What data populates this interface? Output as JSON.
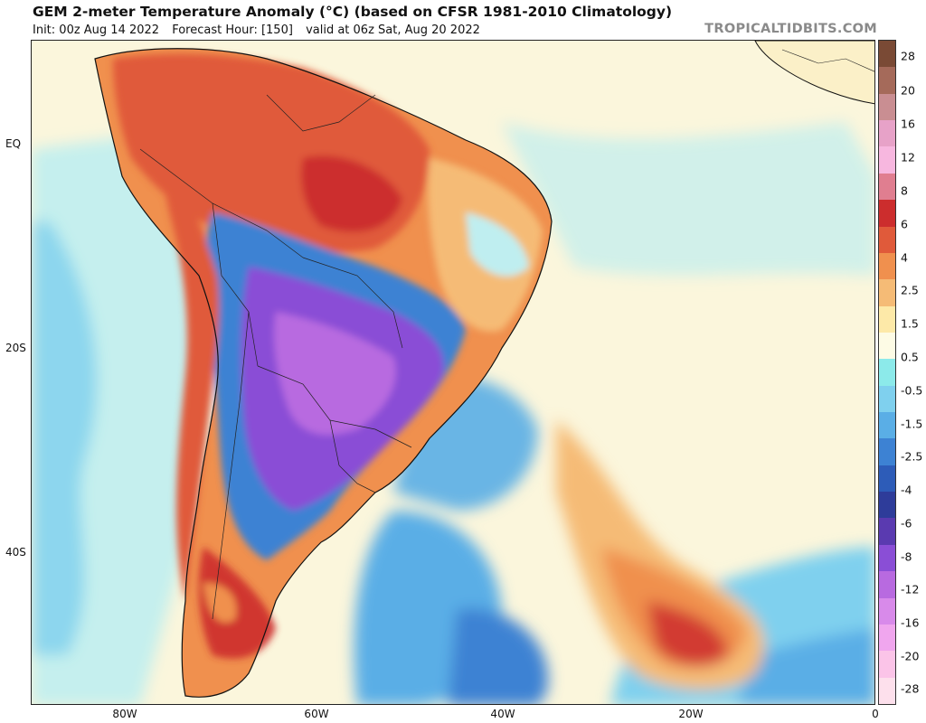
{
  "header": {
    "title": "GEM 2-meter Temperature Anomaly (°C) (based on CFSR 1981-2010 Climatology)",
    "init": "Init: 00z Aug 14 2022",
    "forecast_hour": "Forecast Hour: [150]",
    "valid": "valid at 06z Sat, Aug 20 2022",
    "source": "TROPICALTIDBITS.COM"
  },
  "axes": {
    "lat_labels": [
      "EQ",
      "20S",
      "40S"
    ],
    "lon_labels": [
      "80W",
      "60W",
      "40W",
      "20W",
      "0"
    ]
  },
  "colorbar": {
    "labels": [
      "28",
      "20",
      "16",
      "12",
      "8",
      "6",
      "4",
      "2.5",
      "1.5",
      "0.5",
      "-0.5",
      "-1.5",
      "-2.5",
      "-4",
      "-6",
      "-8",
      "-12",
      "-16",
      "-20",
      "-28"
    ],
    "colors": [
      "#7a4a35",
      "#a56a5a",
      "#c98e92",
      "#e7a2c8",
      "#f7b7df",
      "#e07e90",
      "#cc2d2d",
      "#e05a3a",
      "#f0904e",
      "#f5bb76",
      "#fde9a8",
      "#fdfbe5",
      "#8ceaea",
      "#7fd0ee",
      "#5aaee6",
      "#3d82d3",
      "#2d5cb8",
      "#2e3c9a",
      "#5a3ab0",
      "#8a4ed6",
      "#b86ae0",
      "#d88aea",
      "#f0a6ee",
      "#fbc4e8",
      "#fde0ec"
    ]
  },
  "map": {
    "colors": {
      "ocean_neutral": "#fbf6dc",
      "ocean_cool": "#bfeef0",
      "cool_blue": "#5aaee6",
      "deep_blue": "#2d5cb8",
      "purple": "#8a4ed6",
      "warm_orange": "#f0904e",
      "warm_red": "#cc2d2d",
      "borders": "#111111"
    }
  }
}
